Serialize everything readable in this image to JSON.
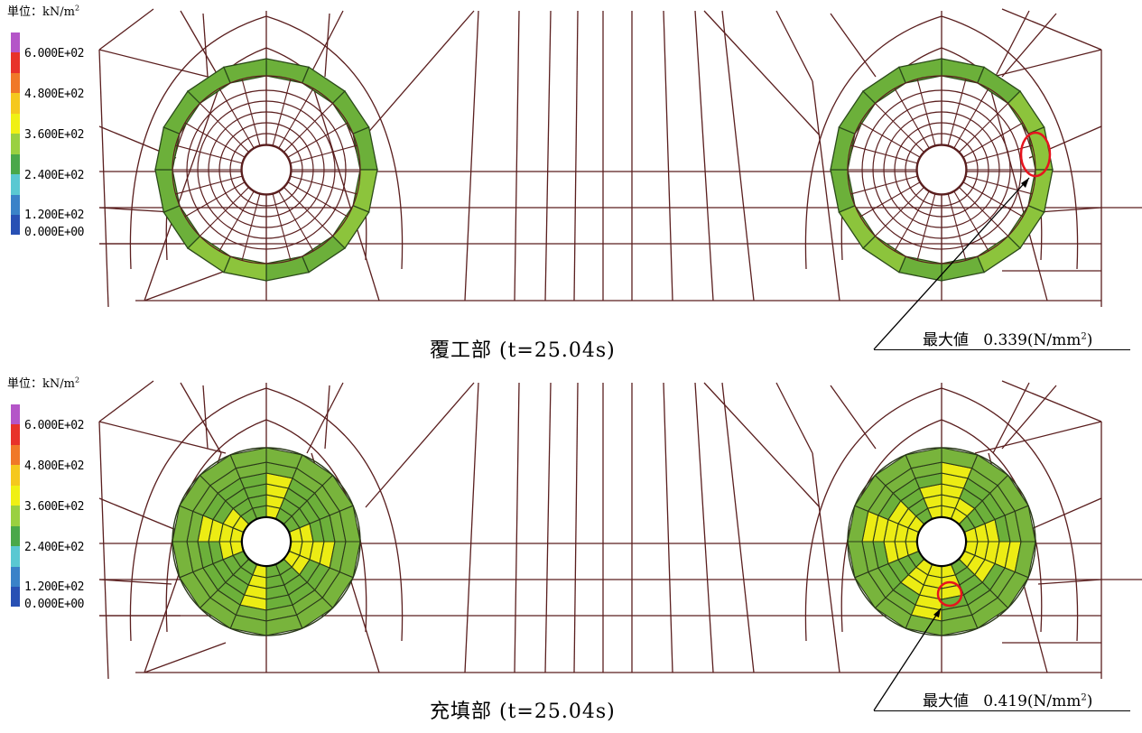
{
  "panels": [
    {
      "id": "lining",
      "caption": "覆工部 (t=25.04s)",
      "max_label": "最大値",
      "max_value": "0.339",
      "max_unit_pre": "(N/mm",
      "max_unit_exp": "2",
      "max_unit_post": ")"
    },
    {
      "id": "filling",
      "caption": "充填部 (t=25.04s)",
      "max_label": "最大値",
      "max_value": "0.419",
      "max_unit_pre": "(N/mm",
      "max_unit_exp": "2",
      "max_unit_post": ")"
    }
  ],
  "legend": {
    "unit_label": "単位：kN/m",
    "unit_exp": "2",
    "ticks": [
      "6.000E+02",
      "4.800E+02",
      "3.600E+02",
      "2.400E+02",
      "1.200E+02",
      "0.000E+00"
    ],
    "colors": [
      "#b455c8",
      "#e8322a",
      "#f07828",
      "#f5c81e",
      "#f0f014",
      "#9ad040",
      "#4aa84a",
      "#5ac8d2",
      "#3a82c8",
      "#2850b4"
    ]
  },
  "colors": {
    "mesh": "#5a1e1e",
    "green": "#6cb03a",
    "yellow": "#ecec14",
    "highlight": "#e6141e"
  }
}
